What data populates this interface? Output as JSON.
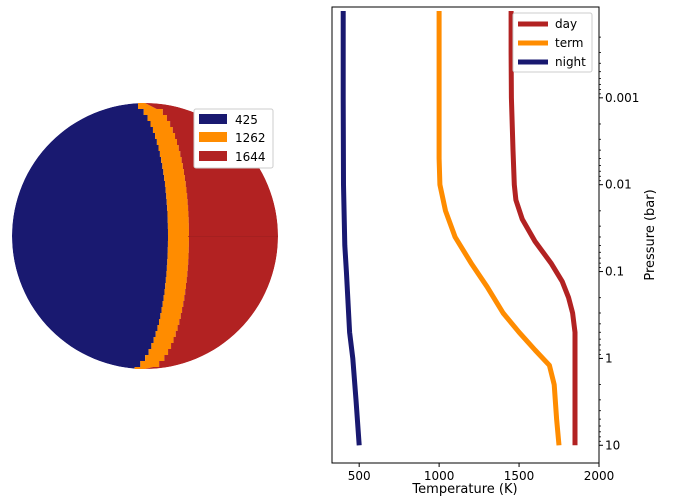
{
  "chart_data": [
    {
      "type": "pie",
      "subtype": "planet-map",
      "legend_position": "top-right",
      "series": [
        {
          "name": "425",
          "label": "night",
          "color": "#191970"
        },
        {
          "name": "1262",
          "label": "term",
          "color": "#ff8c00"
        },
        {
          "name": "1644",
          "label": "day",
          "color": "#b22222"
        }
      ]
    },
    {
      "type": "line",
      "xlabel": "Temperature (K)",
      "ylabel": "Pressure (bar)",
      "xlim": [
        330,
        2000
      ],
      "ylim": [
        16,
        9e-05
      ],
      "yscale": "log",
      "y_axis_side": "right",
      "grid": false,
      "legend_position": "top-right",
      "xticks": [
        500,
        1000,
        1500,
        2000
      ],
      "yticks": [
        0.001,
        0.01,
        0.1,
        1,
        10
      ],
      "ytick_labels": [
        "0.001",
        "0.01",
        "0.1",
        "1",
        "10"
      ],
      "series": [
        {
          "name": "day",
          "color": "#b22222",
          "points": [
            [
              1450,
              0.0001
            ],
            [
              1450,
              0.0003
            ],
            [
              1452,
              0.001
            ],
            [
              1462,
              0.004
            ],
            [
              1470,
              0.01
            ],
            [
              1480,
              0.015
            ],
            [
              1520,
              0.025
            ],
            [
              1600,
              0.045
            ],
            [
              1700,
              0.08
            ],
            [
              1770,
              0.13
            ],
            [
              1810,
              0.2
            ],
            [
              1835,
              0.3
            ],
            [
              1850,
              0.5
            ],
            [
              1850,
              1
            ],
            [
              1850,
              5
            ],
            [
              1850,
              10
            ]
          ]
        },
        {
          "name": "term",
          "color": "#ff8c00",
          "points": [
            [
              1000,
              0.0001
            ],
            [
              1000,
              0.001
            ],
            [
              1000,
              0.005
            ],
            [
              1005,
              0.01
            ],
            [
              1040,
              0.02
            ],
            [
              1100,
              0.04
            ],
            [
              1200,
              0.08
            ],
            [
              1300,
              0.15
            ],
            [
              1400,
              0.3
            ],
            [
              1500,
              0.5
            ],
            [
              1600,
              0.8
            ],
            [
              1690,
              1.2
            ],
            [
              1720,
              2
            ],
            [
              1735,
              5
            ],
            [
              1750,
              10
            ]
          ]
        },
        {
          "name": "night",
          "color": "#191970",
          "points": [
            [
              400,
              0.0001
            ],
            [
              400,
              0.001
            ],
            [
              402,
              0.01
            ],
            [
              410,
              0.05
            ],
            [
              420,
              0.1
            ],
            [
              440,
              0.5
            ],
            [
              460,
              1
            ],
            [
              480,
              3
            ],
            [
              500,
              10
            ]
          ]
        }
      ]
    }
  ]
}
